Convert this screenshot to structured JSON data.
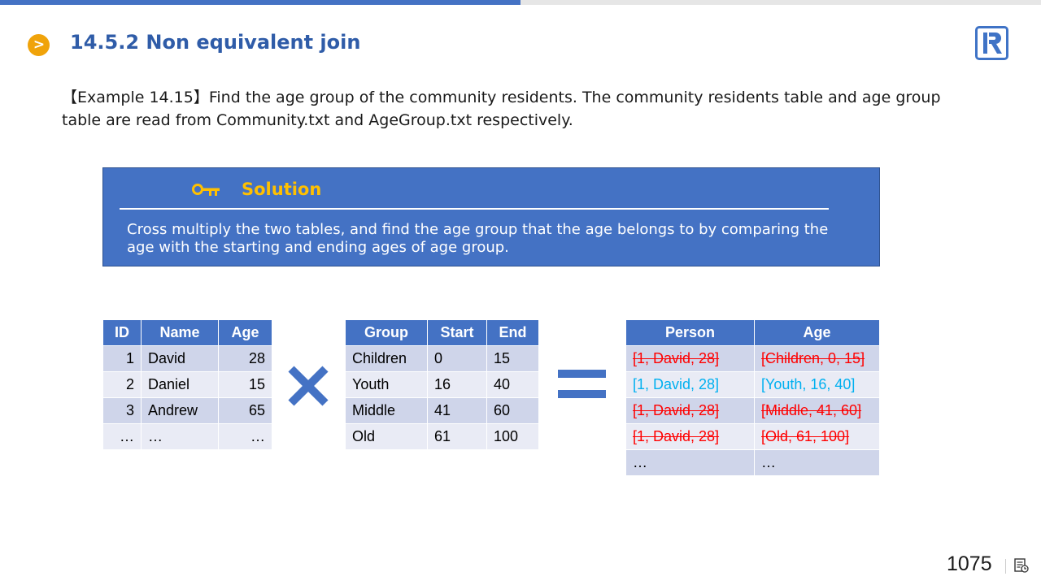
{
  "header": {
    "progress_percent": 50,
    "title": "14.5.2 Non equivalent join",
    "bullet_icon": "chevron-right-icon",
    "logo_icon": "r-logo-icon"
  },
  "example": {
    "text": "【Example 14.15】Find the age group of the community residents. The community residents table and age group table are read from Community.txt and AgeGroup.txt respectively."
  },
  "solution": {
    "icon": "key-icon",
    "title": "Solution",
    "text": "Cross multiply the two tables, and find the age group that the age belongs to by comparing the age with the starting and ending ages of age group."
  },
  "residents_table": {
    "headers": [
      "ID",
      "Name",
      "Age"
    ],
    "rows": [
      [
        "1",
        "David",
        "28"
      ],
      [
        "2",
        "Daniel",
        "15"
      ],
      [
        "3",
        "Andrew",
        "65"
      ],
      [
        "…",
        "…",
        "…"
      ]
    ]
  },
  "operator_cross": "cross-multiply-icon",
  "agegroup_table": {
    "headers": [
      "Group",
      "Start",
      "End"
    ],
    "rows": [
      [
        "Children",
        "0",
        "15"
      ],
      [
        "Youth",
        "16",
        "40"
      ],
      [
        "Middle",
        "41",
        "60"
      ],
      [
        "Old",
        "61",
        "100"
      ]
    ]
  },
  "operator_equals": "equals-icon",
  "result_table": {
    "headers": [
      "Person",
      "Age"
    ],
    "rows": [
      {
        "person": "[1, David, 28]",
        "age": "[Children, 0, 15]",
        "status": "struck"
      },
      {
        "person": "[1, David, 28]",
        "age": "[Youth, 16, 40]",
        "status": "match"
      },
      {
        "person": "[1, David, 28]",
        "age": "[Middle, 41, 60]",
        "status": "struck"
      },
      {
        "person": "[1, David, 28]",
        "age": "[Old, 61, 100]",
        "status": "struck"
      },
      {
        "person": "…",
        "age": "…",
        "status": "plain"
      }
    ]
  },
  "colors": {
    "accent_blue": "#4472c4",
    "title_blue": "#2f5ca8",
    "bullet_orange": "#f0a30a",
    "solution_gold": "#ffc000",
    "struck_red": "#ff0000",
    "match_cyan": "#00b0f0",
    "row_dark": "#cfd5ea",
    "row_light": "#e9ebf5"
  },
  "footer": {
    "page_number": "1075",
    "notes_icon": "notes-view-icon"
  }
}
